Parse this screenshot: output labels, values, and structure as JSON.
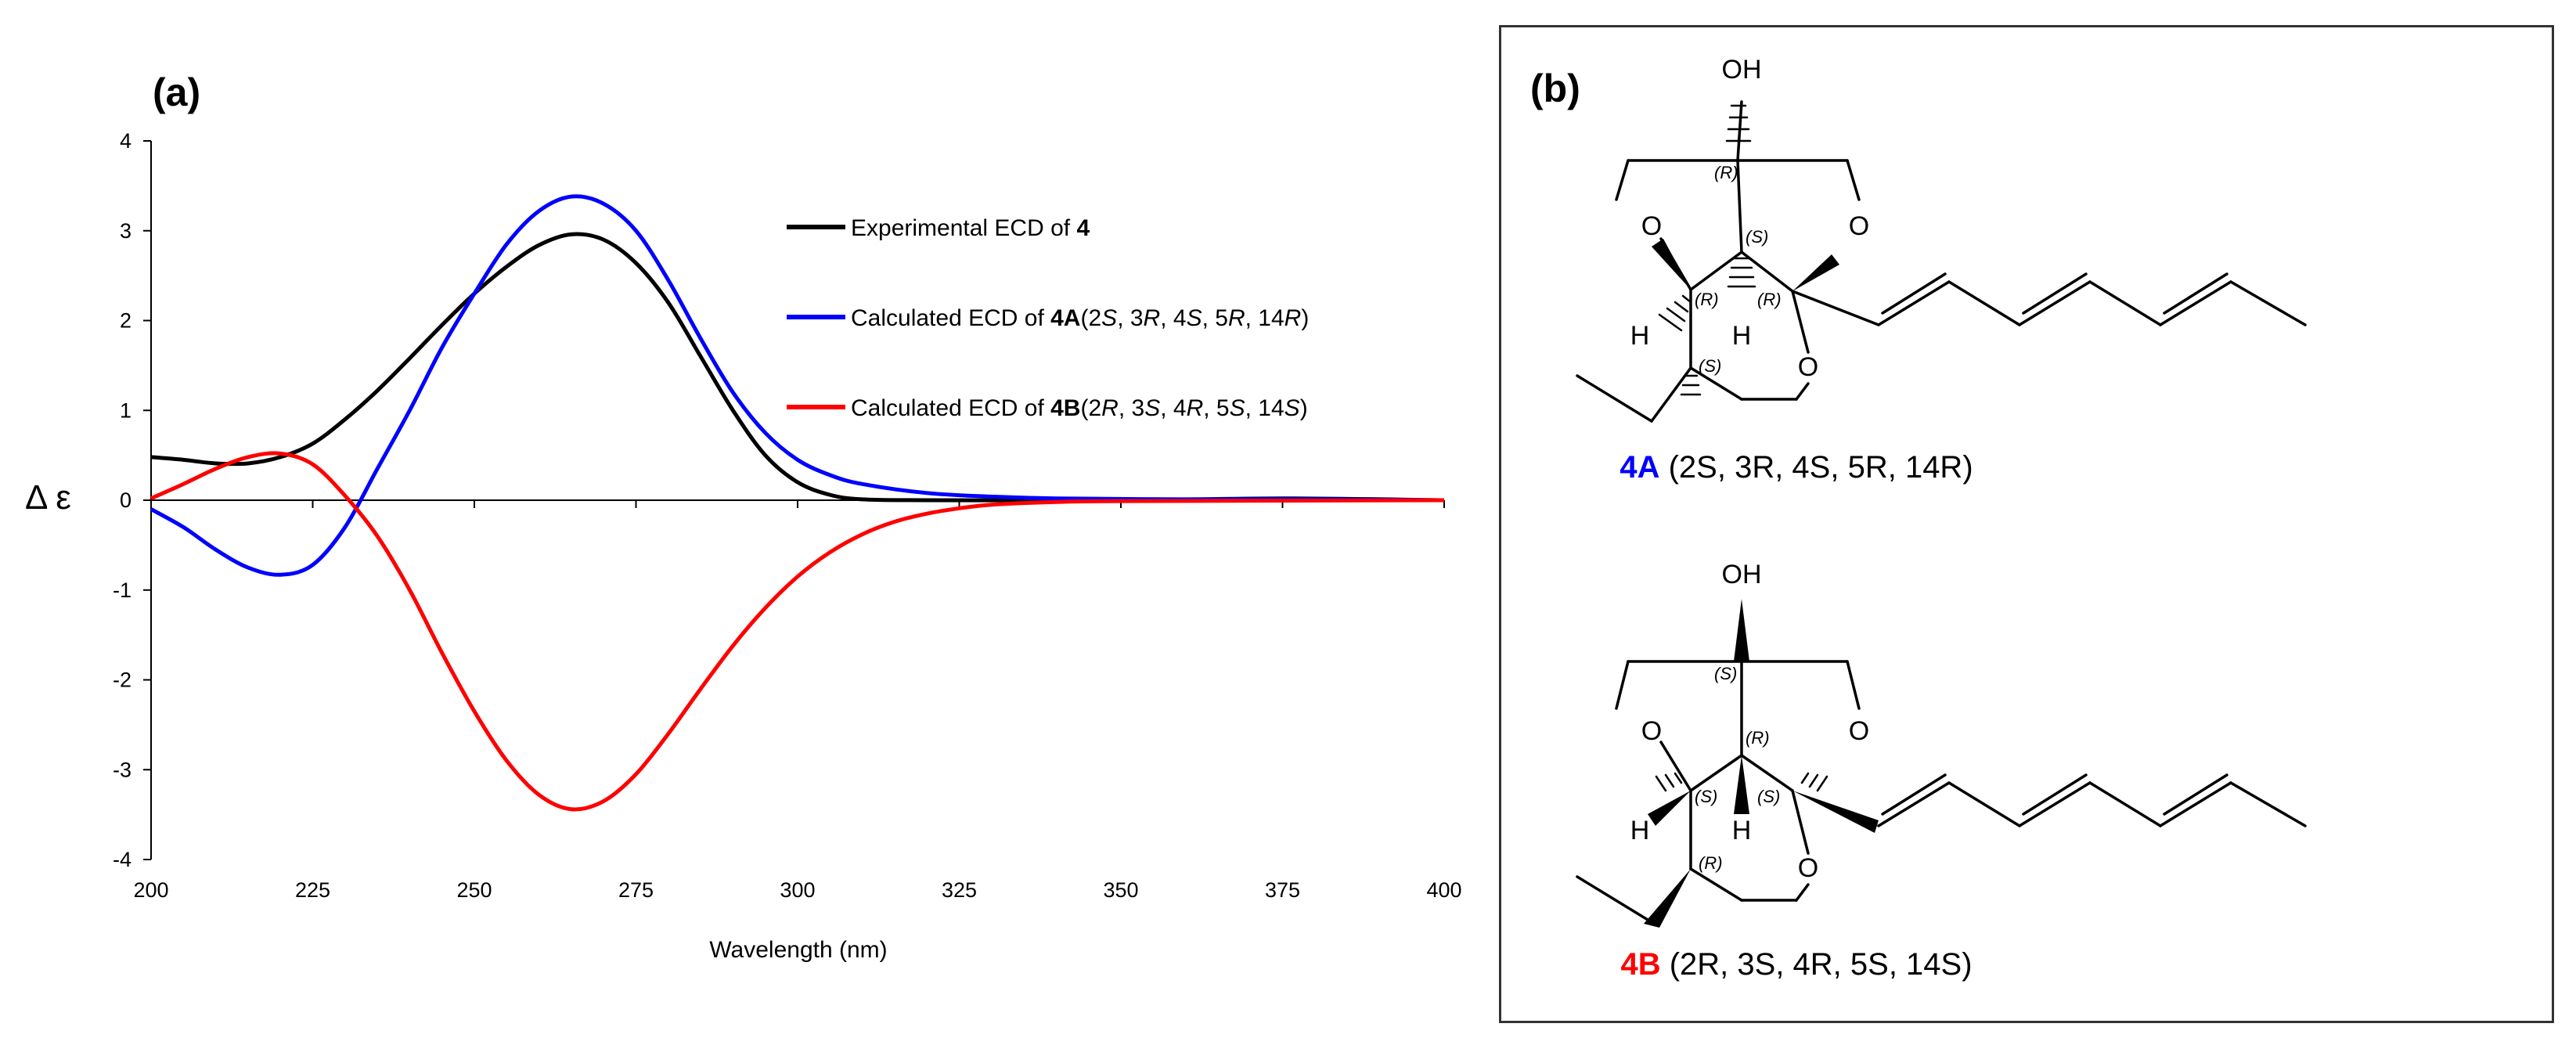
{
  "chart_data": {
    "type": "line",
    "panel_label": "(a)",
    "xlabel": "Wavelength (nm)",
    "ylabel": "Δ ε",
    "xlim": [
      200,
      400
    ],
    "ylim": [
      -4,
      4
    ],
    "x_ticks": [
      "200",
      "225",
      "250",
      "275",
      "300",
      "325",
      "350",
      "375",
      "400"
    ],
    "y_ticks": [
      "4",
      "3",
      "2",
      "1",
      "0",
      "-1",
      "-2",
      "-3",
      "-4"
    ],
    "grid": false,
    "legend_position": "top-right",
    "series": [
      {
        "name": "Experimental ECD of 4",
        "legend_parts": [
          {
            "t": "Experimental ECD of ",
            "b": false,
            "i": false
          },
          {
            "t": "4",
            "b": true,
            "i": false
          }
        ],
        "color": "#000000",
        "points": [
          [
            200,
            0.48
          ],
          [
            205,
            0.45
          ],
          [
            210,
            0.41
          ],
          [
            215,
            0.41
          ],
          [
            220,
            0.48
          ],
          [
            225,
            0.63
          ],
          [
            230,
            0.9
          ],
          [
            235,
            1.22
          ],
          [
            240,
            1.58
          ],
          [
            245,
            1.95
          ],
          [
            250,
            2.3
          ],
          [
            255,
            2.6
          ],
          [
            260,
            2.84
          ],
          [
            265,
            2.96
          ],
          [
            270,
            2.9
          ],
          [
            275,
            2.64
          ],
          [
            280,
            2.2
          ],
          [
            285,
            1.6
          ],
          [
            290,
            1.0
          ],
          [
            295,
            0.5
          ],
          [
            300,
            0.2
          ],
          [
            305,
            0.06
          ],
          [
            310,
            0.01
          ],
          [
            320,
            0.0
          ],
          [
            350,
            0.0
          ],
          [
            375,
            0.02
          ],
          [
            400,
            0.0
          ]
        ]
      },
      {
        "name": "Calculated ECD of 4A(2S, 3R, 4S, 5R, 14R)",
        "legend_parts": [
          {
            "t": "Calculated ECD of ",
            "b": false,
            "i": false
          },
          {
            "t": "4A",
            "b": true,
            "i": false
          },
          {
            "t": "(2",
            "b": false,
            "i": false
          },
          {
            "t": "S",
            "b": false,
            "i": true
          },
          {
            "t": ", 3",
            "b": false,
            "i": false
          },
          {
            "t": "R",
            "b": false,
            "i": true
          },
          {
            "t": ", 4",
            "b": false,
            "i": false
          },
          {
            "t": "S",
            "b": false,
            "i": true
          },
          {
            "t": ", 5",
            "b": false,
            "i": false
          },
          {
            "t": "R",
            "b": false,
            "i": true
          },
          {
            "t": ", 14",
            "b": false,
            "i": false
          },
          {
            "t": "R",
            "b": false,
            "i": true
          },
          {
            "t": ")",
            "b": false,
            "i": false
          }
        ],
        "color": "#0000ff",
        "points": [
          [
            200,
            -0.1
          ],
          [
            205,
            -0.3
          ],
          [
            210,
            -0.55
          ],
          [
            215,
            -0.75
          ],
          [
            220,
            -0.83
          ],
          [
            225,
            -0.72
          ],
          [
            230,
            -0.3
          ],
          [
            235,
            0.35
          ],
          [
            240,
            1.0
          ],
          [
            245,
            1.7
          ],
          [
            250,
            2.3
          ],
          [
            255,
            2.85
          ],
          [
            260,
            3.22
          ],
          [
            265,
            3.38
          ],
          [
            270,
            3.3
          ],
          [
            275,
            3.0
          ],
          [
            280,
            2.45
          ],
          [
            285,
            1.8
          ],
          [
            290,
            1.2
          ],
          [
            295,
            0.75
          ],
          [
            300,
            0.45
          ],
          [
            305,
            0.28
          ],
          [
            310,
            0.18
          ],
          [
            320,
            0.08
          ],
          [
            330,
            0.04
          ],
          [
            340,
            0.02
          ],
          [
            360,
            0.01
          ],
          [
            380,
            0.01
          ],
          [
            400,
            0.0
          ]
        ]
      },
      {
        "name": "Calculated ECD of 4B(2R, 3S, 4R, 5S, 14S)",
        "legend_parts": [
          {
            "t": "Calculated ECD of ",
            "b": false,
            "i": false
          },
          {
            "t": "4B",
            "b": true,
            "i": false
          },
          {
            "t": "(2",
            "b": false,
            "i": false
          },
          {
            "t": "R",
            "b": false,
            "i": true
          },
          {
            "t": ", 3",
            "b": false,
            "i": false
          },
          {
            "t": "S",
            "b": false,
            "i": true
          },
          {
            "t": ", 4",
            "b": false,
            "i": false
          },
          {
            "t": "R",
            "b": false,
            "i": true
          },
          {
            "t": ", 5",
            "b": false,
            "i": false
          },
          {
            "t": "S",
            "b": false,
            "i": true
          },
          {
            "t": ", 14",
            "b": false,
            "i": false
          },
          {
            "t": "S",
            "b": false,
            "i": true
          },
          {
            "t": ")",
            "b": false,
            "i": false
          }
        ],
        "color": "#ff0000",
        "points": [
          [
            200,
            0.02
          ],
          [
            205,
            0.18
          ],
          [
            210,
            0.35
          ],
          [
            215,
            0.48
          ],
          [
            220,
            0.52
          ],
          [
            225,
            0.4
          ],
          [
            230,
            0.05
          ],
          [
            235,
            -0.4
          ],
          [
            240,
            -1.0
          ],
          [
            245,
            -1.7
          ],
          [
            250,
            -2.35
          ],
          [
            255,
            -2.9
          ],
          [
            260,
            -3.28
          ],
          [
            265,
            -3.44
          ],
          [
            270,
            -3.35
          ],
          [
            275,
            -3.05
          ],
          [
            280,
            -2.6
          ],
          [
            285,
            -2.1
          ],
          [
            290,
            -1.62
          ],
          [
            295,
            -1.2
          ],
          [
            300,
            -0.85
          ],
          [
            305,
            -0.58
          ],
          [
            310,
            -0.38
          ],
          [
            315,
            -0.24
          ],
          [
            320,
            -0.15
          ],
          [
            325,
            -0.09
          ],
          [
            330,
            -0.05
          ],
          [
            340,
            -0.02
          ],
          [
            350,
            -0.01
          ],
          [
            400,
            0.0
          ]
        ]
      }
    ]
  },
  "structures": {
    "panel_label": "(b)",
    "oh_label": "OH",
    "o_label": "O",
    "h_label": "H",
    "compound_a": {
      "name": "4A",
      "name_color": "#0000ff",
      "caption": " (2S, 3R, 4S, 5R, 14R)",
      "stereo": {
        "top": "(R)",
        "mid": "(S)",
        "left": "(R)",
        "right": "(R)",
        "bottom": "(S)"
      }
    },
    "compound_b": {
      "name": "4B",
      "name_color": "#ff0000",
      "caption": " (2R, 3S, 4R, 5S, 14S)",
      "stereo": {
        "top": "(S)",
        "mid": "(R)",
        "left": "(S)",
        "right": "(S)",
        "bottom": "(R)"
      }
    }
  }
}
